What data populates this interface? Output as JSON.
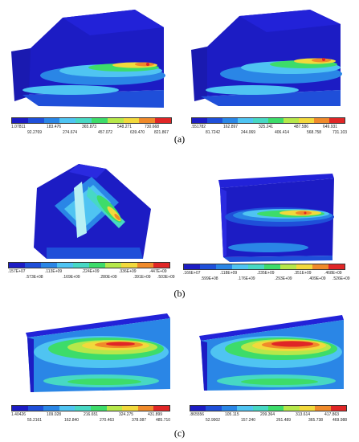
{
  "figure": {
    "captions": {
      "a": "(a)",
      "b": "(b)",
      "c": "(c)"
    },
    "palette": [
      "#1c1cc4",
      "#1f4fd9",
      "#2a86e6",
      "#4fc4f2",
      "#47d8c4",
      "#3ddc6a",
      "#b6e84a",
      "#f2d93c",
      "#f08a2a",
      "#e02626"
    ],
    "panels": {
      "a_left": {
        "legend_top": [
          "1.07811",
          "183.476",
          "365.873",
          "548.271",
          "730.668"
        ],
        "legend_bottom": [
          "92.2769",
          "274.674",
          "457.072",
          "639.470",
          "821.867"
        ]
      },
      "a_right": {
        "legend_top": [
          ".551782",
          "162.897",
          "325.241",
          "487.586",
          "649.931"
        ],
        "legend_bottom": [
          "81.7242",
          "244.069",
          "406.414",
          "568.758",
          "731.103"
        ]
      },
      "b_left": {
        "legend_top": [
          ".157E+07",
          ".113E+09",
          ".224E+09",
          ".336E+09",
          ".447E+09"
        ],
        "legend_bottom": [
          ".573E+08",
          ".169E+09",
          ".280E+09",
          ".391E+09",
          ".503E+09"
        ]
      },
      "b_right": {
        "legend_top": [
          ".166E+07",
          ".118E+09",
          ".235E+09",
          ".351E+09",
          ".468E+09"
        ],
        "legend_bottom": [
          ".599E+08",
          ".176E+09",
          ".293E+09",
          ".409E+09",
          ".526E+09"
        ]
      },
      "c_left": {
        "legend_top": [
          "1.40426",
          "109.028",
          "216.651",
          "324.275",
          "431.899"
        ],
        "legend_bottom": [
          "55.2161",
          "162.840",
          "270.463",
          "378.087",
          "485.710"
        ]
      },
      "c_right": {
        "legend_top": [
          ".865556",
          "105.115",
          "209.364",
          "313.614",
          "417.863"
        ],
        "legend_bottom": [
          "52.9902",
          "157.240",
          "261.489",
          "365.738",
          "469.988"
        ]
      }
    }
  }
}
